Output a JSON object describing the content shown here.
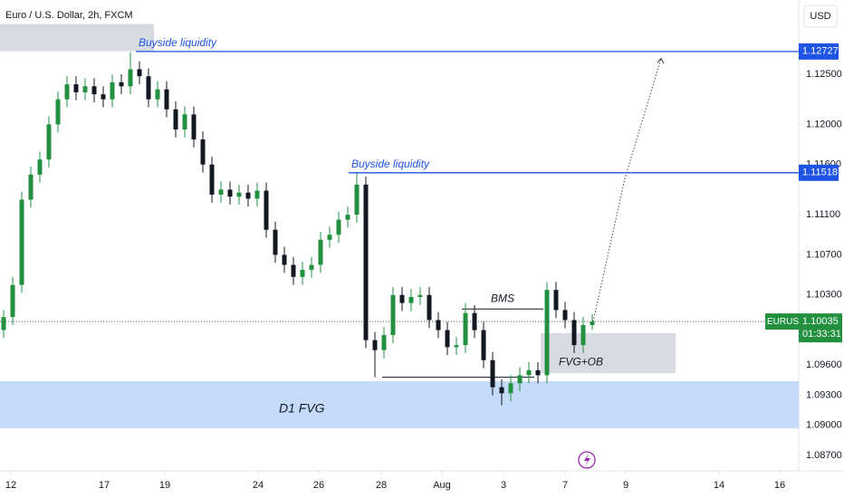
{
  "chart_data": {
    "type": "candlestick",
    "title": "Euro / U.S. Dollar, 2h, FXCM",
    "currency": "USD",
    "symbol": "EURUSD",
    "last_price": 1.10035,
    "countdown": "01:33:31",
    "up_color": "#22903f",
    "down_color": "#131722",
    "ylim": [
      1.08547,
      1.1324
    ],
    "xlim": [
      -0.4,
      87.8
    ],
    "yticks": [
      {
        "value": 1.125,
        "label": "1.12500"
      },
      {
        "value": 1.12,
        "label": "1.12000"
      },
      {
        "value": 1.116,
        "label": "1.11600"
      },
      {
        "value": 1.111,
        "label": "1.11100"
      },
      {
        "value": 1.107,
        "label": "1.10700"
      },
      {
        "value": 1.103,
        "label": "1.10300"
      },
      {
        "value": 1.096,
        "label": "1.09600"
      },
      {
        "value": 1.093,
        "label": "1.09300"
      },
      {
        "value": 1.09,
        "label": "1.09000"
      },
      {
        "value": 1.087,
        "label": "1.08700"
      }
    ],
    "xticks": [
      {
        "value": 0.8,
        "label": "12"
      },
      {
        "value": 11.1,
        "label": "17"
      },
      {
        "value": 17.8,
        "label": "19"
      },
      {
        "value": 28.1,
        "label": "24"
      },
      {
        "value": 34.8,
        "label": "26"
      },
      {
        "value": 41.7,
        "label": "28"
      },
      {
        "value": 48.4,
        "label": "Aug"
      },
      {
        "value": 55.2,
        "label": "3"
      },
      {
        "value": 62,
        "label": "7"
      },
      {
        "value": 68.7,
        "label": "9"
      },
      {
        "value": 79,
        "label": "14"
      },
      {
        "value": 85.7,
        "label": "16"
      }
    ],
    "levels": [
      {
        "value": 1.12727,
        "start": 14.6,
        "text": "Buyside liquidity"
      },
      {
        "value": 1.11518,
        "start": 38.1,
        "text": "Buyside liquidity"
      }
    ],
    "zones": [
      {
        "x": [
          -0.4,
          16.6
        ],
        "price": [
          1.1273,
          1.13
        ]
      },
      {
        "x": [
          59.3,
          74.2
        ],
        "price": [
          1.0952,
          1.0992
        ],
        "text": "FVG+OB"
      },
      {
        "x": [
          -0.4,
          87.8
        ],
        "price": [
          1.0897,
          1.0944
        ],
        "text": "D1 FVG"
      }
    ],
    "segments": [
      {
        "x": [
          50.6,
          59.6
        ],
        "price": 1.1016,
        "text": "BMS"
      },
      {
        "x": [
          41.8,
          58.6
        ],
        "price": 1.0948
      }
    ],
    "projection": {
      "x": [
        65.1,
        68.6,
        72.6
      ],
      "price": [
        1.10035,
        1.1146,
        1.1266
      ]
    },
    "ohlc": [
      [
        1.0995,
        1.1015,
        1.0987,
        1.1008
      ],
      [
        1.1008,
        1.1048,
        1.1,
        1.104
      ],
      [
        1.104,
        1.1133,
        1.1032,
        1.1125
      ],
      [
        1.1125,
        1.1158,
        1.1117,
        1.115
      ],
      [
        1.115,
        1.1173,
        1.1142,
        1.1165
      ],
      [
        1.1165,
        1.1208,
        1.1157,
        1.12
      ],
      [
        1.12,
        1.1233,
        1.1192,
        1.1225
      ],
      [
        1.1225,
        1.1248,
        1.1217,
        1.124
      ],
      [
        1.124,
        1.1248,
        1.1224,
        1.1232
      ],
      [
        1.1232,
        1.1246,
        1.1224,
        1.1238
      ],
      [
        1.1238,
        1.1246,
        1.1222,
        1.123
      ],
      [
        1.123,
        1.1238,
        1.1217,
        1.1225
      ],
      [
        1.1225,
        1.125,
        1.1217,
        1.1242
      ],
      [
        1.1242,
        1.125,
        1.123,
        1.1238
      ],
      [
        1.1238,
        1.1272,
        1.123,
        1.1255
      ],
      [
        1.1255,
        1.1263,
        1.124,
        1.1248
      ],
      [
        1.1248,
        1.1256,
        1.1217,
        1.1225
      ],
      [
        1.1225,
        1.1243,
        1.1217,
        1.1235
      ],
      [
        1.1235,
        1.1243,
        1.1207,
        1.1215
      ],
      [
        1.1215,
        1.1223,
        1.1187,
        1.1195
      ],
      [
        1.1195,
        1.1218,
        1.1187,
        1.121
      ],
      [
        1.121,
        1.1218,
        1.1177,
        1.1185
      ],
      [
        1.1185,
        1.1193,
        1.1152,
        1.116
      ],
      [
        1.116,
        1.1168,
        1.1122,
        1.113
      ],
      [
        1.113,
        1.1143,
        1.1122,
        1.1135
      ],
      [
        1.1135,
        1.1143,
        1.112,
        1.1128
      ],
      [
        1.1128,
        1.114,
        1.112,
        1.1132
      ],
      [
        1.1132,
        1.114,
        1.1118,
        1.1126
      ],
      [
        1.1126,
        1.1142,
        1.1118,
        1.1134
      ],
      [
        1.1134,
        1.1142,
        1.1087,
        1.1095
      ],
      [
        1.1095,
        1.1103,
        1.1062,
        1.107
      ],
      [
        1.107,
        1.1078,
        1.1052,
        1.106
      ],
      [
        1.106,
        1.1068,
        1.104,
        1.1048
      ],
      [
        1.1048,
        1.1063,
        1.104,
        1.1055
      ],
      [
        1.1055,
        1.1068,
        1.1047,
        1.106
      ],
      [
        1.106,
        1.1093,
        1.1052,
        1.1085
      ],
      [
        1.1085,
        1.1098,
        1.1077,
        1.109
      ],
      [
        1.109,
        1.1113,
        1.1082,
        1.1105
      ],
      [
        1.1105,
        1.1118,
        1.1097,
        1.111
      ],
      [
        1.111,
        1.1152,
        1.1102,
        1.114
      ],
      [
        1.114,
        1.1148,
        1.0977,
        1.0985
      ],
      [
        1.0985,
        1.0993,
        1.0948,
        1.0975
      ],
      [
        1.0975,
        1.0998,
        1.0967,
        1.099
      ],
      [
        1.099,
        1.1038,
        1.0982,
        1.103
      ],
      [
        1.103,
        1.1038,
        1.1014,
        1.1022
      ],
      [
        1.1022,
        1.1036,
        1.1014,
        1.1028
      ],
      [
        1.1028,
        1.1038,
        1.102,
        1.103
      ],
      [
        1.103,
        1.1038,
        1.0997,
        1.1005
      ],
      [
        1.1005,
        1.1013,
        1.0987,
        1.0995
      ],
      [
        1.0995,
        1.1003,
        1.097,
        1.0978
      ],
      [
        1.0978,
        1.0988,
        1.097,
        1.098
      ],
      [
        1.098,
        1.1022,
        1.0972,
        1.1012
      ],
      [
        1.1012,
        1.102,
        1.0987,
        1.0995
      ],
      [
        1.0995,
        1.1003,
        1.0957,
        1.0965
      ],
      [
        1.0965,
        1.0973,
        1.093,
        1.0938
      ],
      [
        1.0938,
        1.0946,
        1.092,
        1.0932
      ],
      [
        1.0932,
        1.095,
        1.0924,
        1.0942
      ],
      [
        1.0942,
        1.0958,
        1.0934,
        1.095
      ],
      [
        1.095,
        1.0963,
        1.0942,
        1.0955
      ],
      [
        1.0955,
        1.0963,
        1.0942,
        1.095
      ],
      [
        1.095,
        1.1043,
        1.0942,
        1.1035
      ],
      [
        1.1035,
        1.1043,
        1.1007,
        1.1015
      ],
      [
        1.1015,
        1.1023,
        1.0997,
        1.1005
      ],
      [
        1.1005,
        1.1013,
        1.0972,
        1.098
      ],
      [
        1.098,
        1.1008,
        1.0972,
        1.1
      ],
      [
        1.1,
        1.1011,
        1.0995,
        1.10035
      ]
    ]
  }
}
